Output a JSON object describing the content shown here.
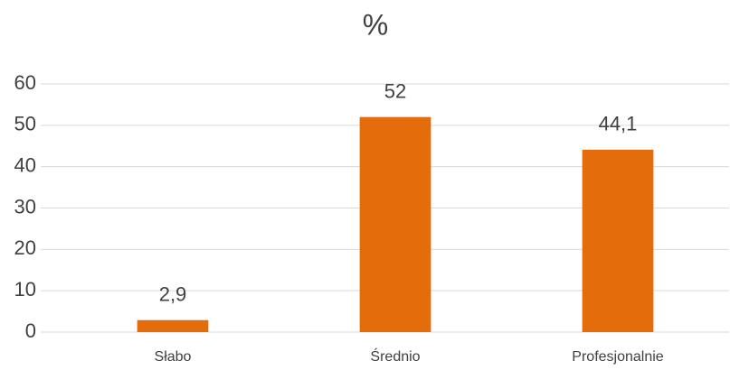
{
  "chart_data": {
    "type": "bar",
    "title": "%",
    "categories": [
      "Słabo",
      "Średnio",
      "Profesjonalnie"
    ],
    "values": [
      2.9,
      52,
      44.1
    ],
    "value_labels": [
      "2,9",
      "52",
      "44,1"
    ],
    "color": "#e46c0a",
    "ylim": [
      0,
      60
    ],
    "yticks": [
      0,
      10,
      20,
      30,
      40,
      50,
      60
    ],
    "grid": true
  }
}
